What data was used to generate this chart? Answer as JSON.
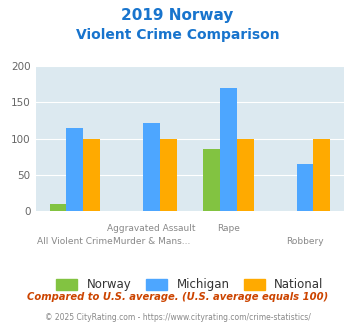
{
  "title_line1": "2019 Norway",
  "title_line2": "Violent Crime Comparison",
  "title_color": "#1874cd",
  "cat_top": [
    "",
    "Aggravated Assault",
    "Rape",
    ""
  ],
  "cat_bot": [
    "All Violent Crime",
    "Murder & Mans...",
    "",
    "Robbery"
  ],
  "norway_values": [
    10,
    0,
    85,
    0
  ],
  "michigan_values": [
    115,
    122,
    170,
    65
  ],
  "national_values": [
    100,
    100,
    100,
    100
  ],
  "norway_color": "#82c341",
  "michigan_color": "#4da6ff",
  "national_color": "#ffaa00",
  "bg_color": "#dce9f0",
  "ylim": [
    0,
    200
  ],
  "yticks": [
    0,
    50,
    100,
    150,
    200
  ],
  "bar_width": 0.22,
  "footnote": "Compared to U.S. average. (U.S. average equals 100)",
  "footnote2": "© 2025 CityRating.com - https://www.cityrating.com/crime-statistics/",
  "footnote_color": "#cc4400",
  "footnote2_color": "#888888"
}
